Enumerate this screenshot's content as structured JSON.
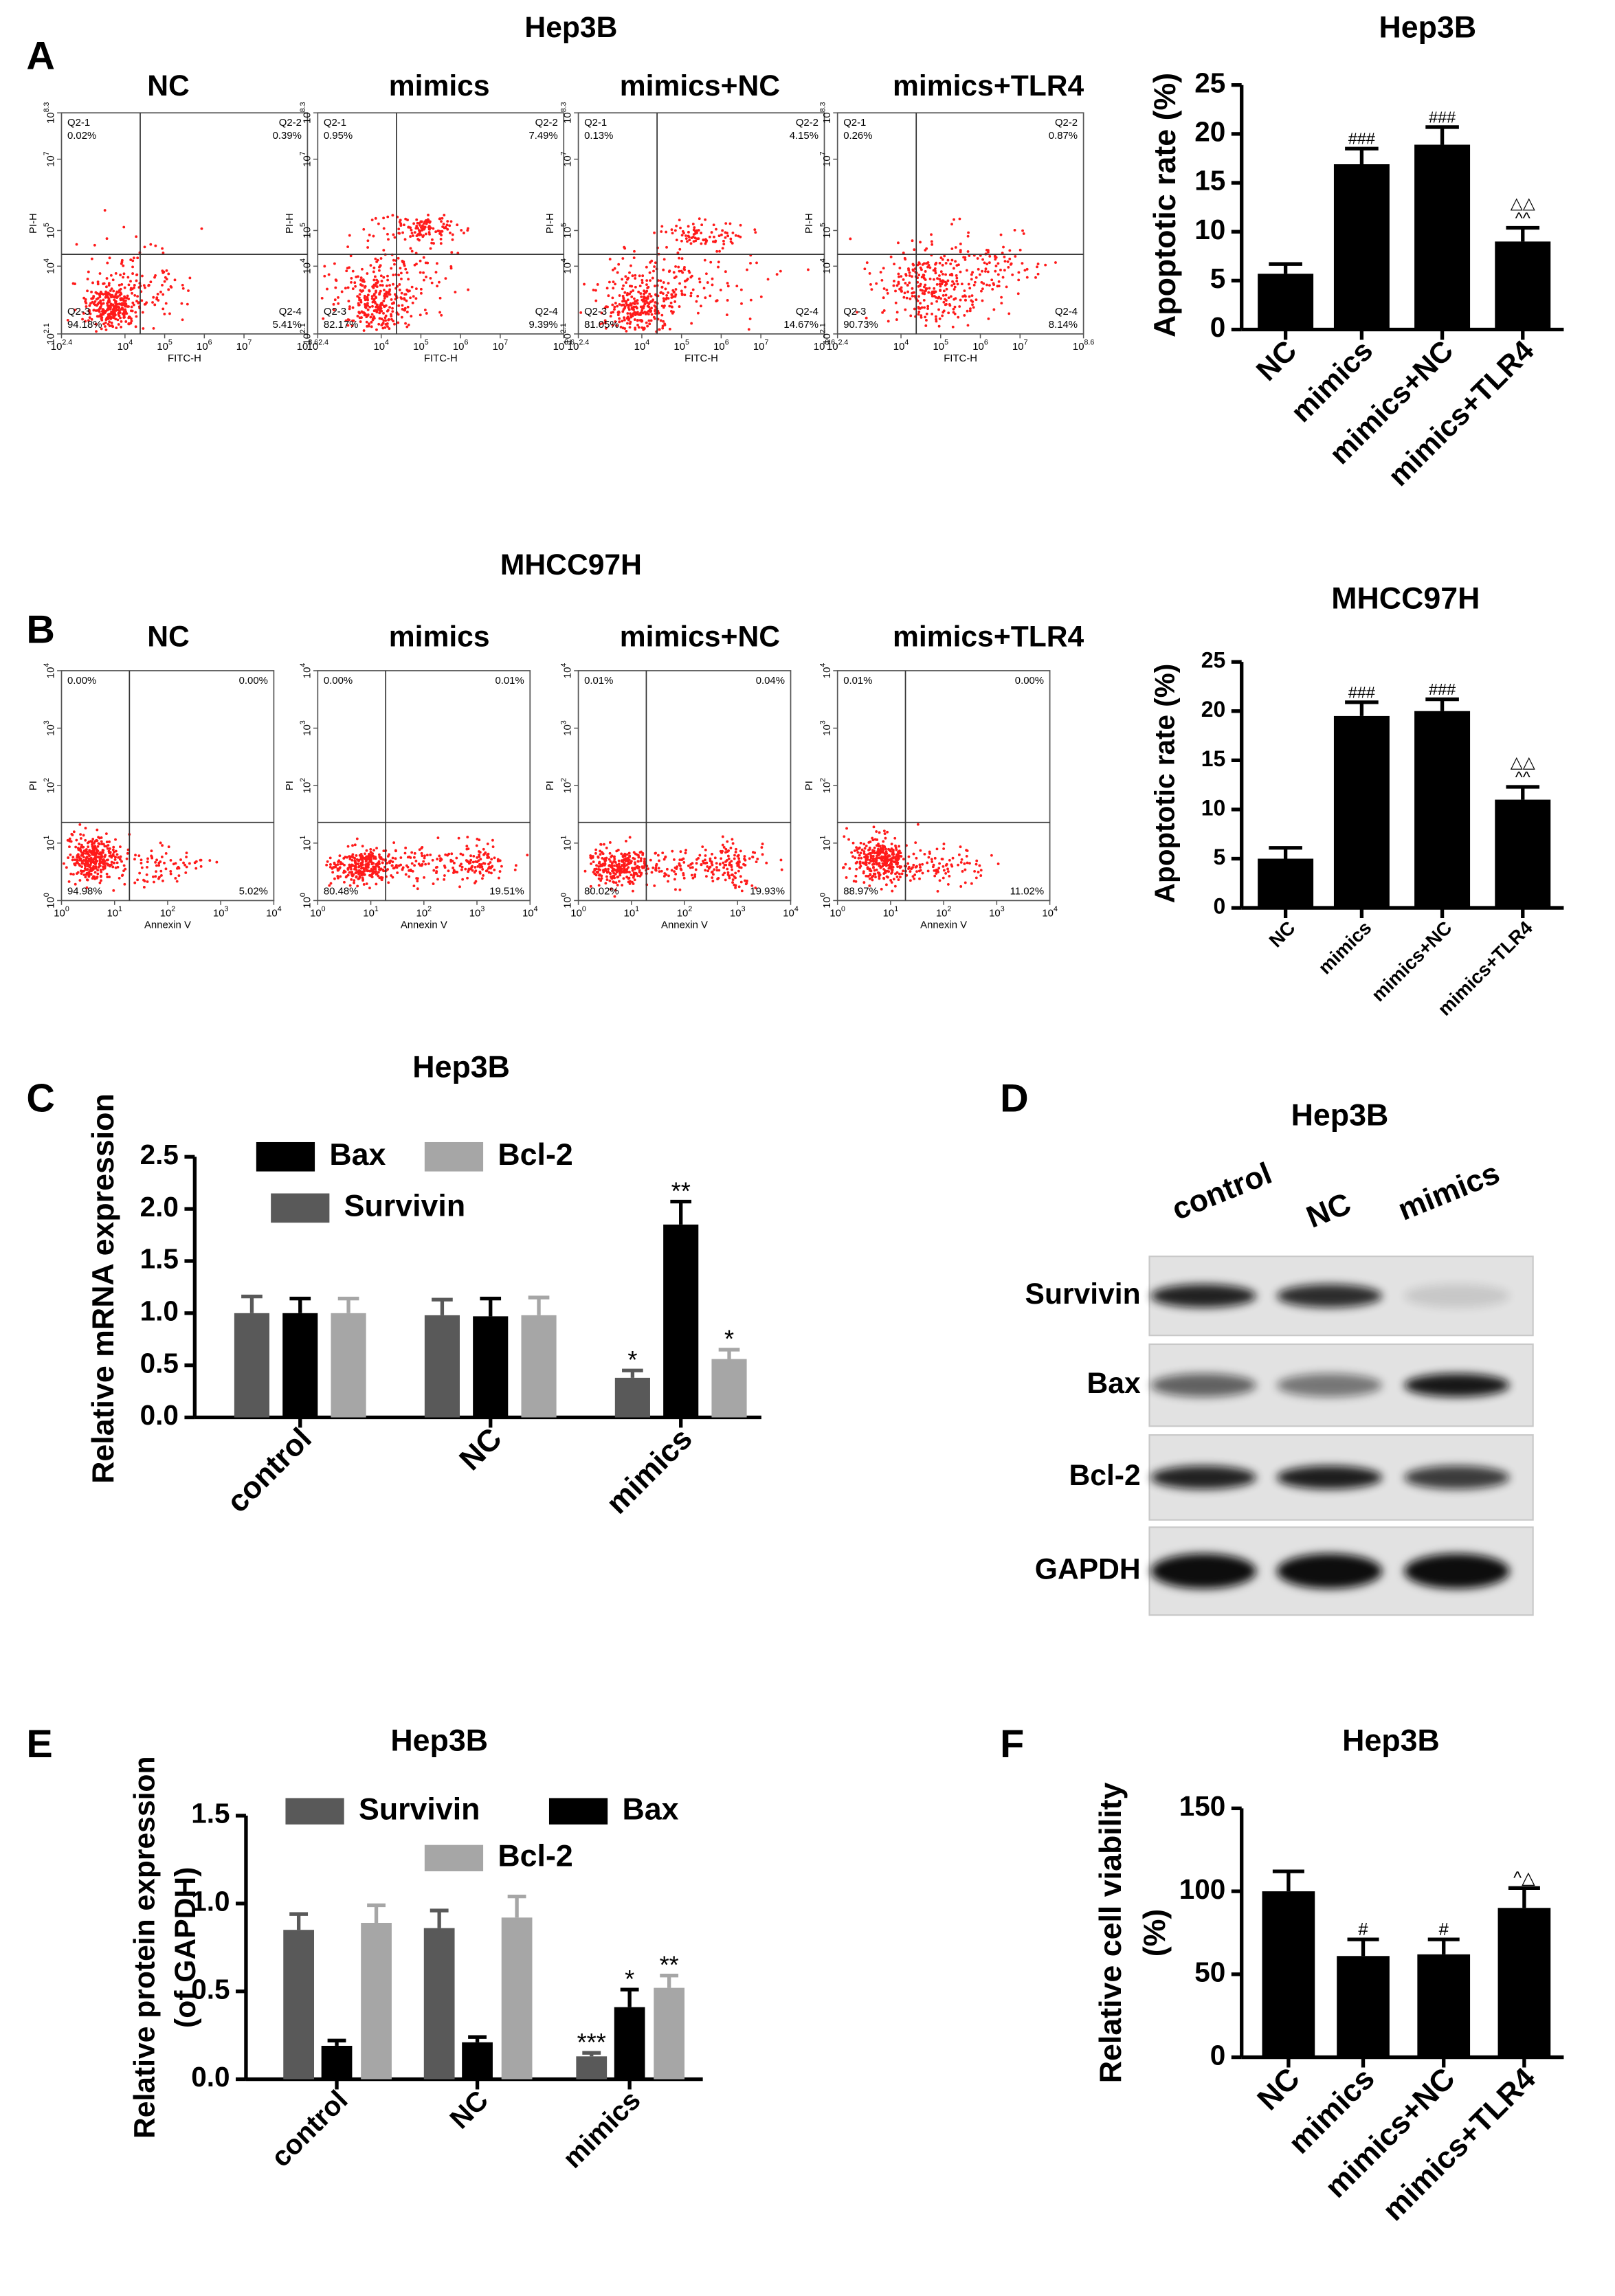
{
  "panel_labels": [
    "A",
    "B",
    "C",
    "D",
    "E",
    "F"
  ],
  "flow_cytometry": [
    {
      "title": "Hep3B",
      "x_label": "FITC-H",
      "y_label": "PI-H",
      "tick_base": "10",
      "xlim": [
        2.4,
        8.6
      ],
      "xticks": [
        2.4,
        4,
        5,
        6,
        7,
        8.6
      ],
      "ylim": [
        2.1,
        8.3
      ],
      "yticks": [
        2.1,
        4,
        5,
        7,
        8.3
      ],
      "plots": [
        {
          "title": "NC",
          "quadrants": [
            {
              "name": "Q2-1",
              "percent": "0.02%"
            },
            {
              "name": "Q2-2",
              "percent": "0.39%"
            },
            {
              "name": "Q2-3",
              "percent": "94.18%"
            },
            {
              "name": "Q2-4",
              "percent": "5.41%"
            }
          ]
        },
        {
          "title": "mimics",
          "quadrants": [
            {
              "name": "Q2-1",
              "percent": "0.95%"
            },
            {
              "name": "Q2-2",
              "percent": "7.49%"
            },
            {
              "name": "Q2-3",
              "percent": "82.17%"
            },
            {
              "name": "Q2-4",
              "percent": "9.39%"
            }
          ]
        },
        {
          "title": "mimics+NC",
          "quadrants": [
            {
              "name": "Q2-1",
              "percent": "0.13%"
            },
            {
              "name": "Q2-2",
              "percent": "4.15%"
            },
            {
              "name": "Q2-3",
              "percent": "81.05%"
            },
            {
              "name": "Q2-4",
              "percent": "14.67%"
            }
          ]
        },
        {
          "title": "mimics+TLR4",
          "quadrants": [
            {
              "name": "Q2-1",
              "percent": "0.26%"
            },
            {
              "name": "Q2-2",
              "percent": "0.87%"
            },
            {
              "name": "Q2-3",
              "percent": "90.73%"
            },
            {
              "name": "Q2-4",
              "percent": "8.14%"
            }
          ]
        }
      ]
    },
    {
      "title": "MHCC97H",
      "x_label": "Annexin V",
      "y_label": "PI",
      "tick_base": "10",
      "xlim": [
        0,
        4
      ],
      "xticks": [
        0,
        1,
        2,
        3,
        4
      ],
      "ylim": [
        0,
        4
      ],
      "yticks": [
        0,
        1,
        2,
        3,
        4
      ],
      "plots": [
        {
          "title": "NC",
          "quadrants": [
            {
              "percent": "0.00%"
            },
            {
              "percent": "0.00%"
            },
            {
              "percent": "94.98%"
            },
            {
              "percent": "5.02%"
            }
          ]
        },
        {
          "title": "mimics",
          "quadrants": [
            {
              "percent": "0.00%"
            },
            {
              "percent": "0.01%"
            },
            {
              "percent": "80.48%"
            },
            {
              "percent": "19.51%"
            }
          ]
        },
        {
          "title": "mimics+NC",
          "quadrants": [
            {
              "percent": "0.01%"
            },
            {
              "percent": "0.04%"
            },
            {
              "percent": "80.02%"
            },
            {
              "percent": "19.93%"
            }
          ]
        },
        {
          "title": "mimics+TLR4",
          "quadrants": [
            {
              "percent": "0.01%"
            },
            {
              "percent": "0.00%"
            },
            {
              "percent": "88.97%"
            },
            {
              "percent": "11.02%"
            }
          ]
        }
      ]
    }
  ],
  "western_blot": {
    "title": "Hep3B",
    "lanes": [
      "control",
      "NC",
      "mimics"
    ],
    "proteins": [
      "Survivin",
      "Bax",
      "Bcl-2",
      "GAPDH"
    ]
  },
  "chart_data": [
    {
      "type": "bar",
      "title": "Hep3B",
      "y_label": [
        "Apoptotic rate (%)"
      ],
      "categories": [
        "NC",
        "mimics",
        "mimics+NC",
        "mimics+TLR4"
      ],
      "series": [
        {
          "color": "#000000",
          "values": [
            5.7,
            16.9,
            18.9,
            9.0
          ],
          "errors": [
            1.0,
            1.6,
            1.8,
            1.4
          ],
          "annotations": [
            [],
            [
              "###"
            ],
            [
              "###"
            ],
            [
              "△△",
              "^^"
            ]
          ]
        }
      ],
      "ylim": [
        0,
        25
      ],
      "yticks": [
        0,
        5,
        10,
        15,
        20,
        25
      ]
    },
    {
      "type": "bar",
      "title": "MHCC97H",
      "y_label": [
        "Apoptotic rate (%)"
      ],
      "categories": [
        "NC",
        "mimics",
        "mimics+NC",
        "mimics+TLR4"
      ],
      "series": [
        {
          "color": "#000000",
          "values": [
            5.0,
            19.5,
            20.0,
            11.0
          ],
          "errors": [
            1.1,
            1.4,
            1.2,
            1.3
          ],
          "annotations": [
            [],
            [
              "###"
            ],
            [
              "###"
            ],
            [
              "△△",
              "^^"
            ]
          ]
        }
      ],
      "ylim": [
        0,
        25
      ],
      "yticks": [
        0,
        5,
        10,
        15,
        20,
        25
      ]
    },
    {
      "type": "bar",
      "title": "Hep3B",
      "y_label": [
        "Relative mRNA expression"
      ],
      "categories": [
        "control",
        "NC",
        "mimics"
      ],
      "series": [
        {
          "name": "Survivin",
          "color": "#595959",
          "values": [
            1.0,
            0.98,
            0.38
          ],
          "errors": [
            0.16,
            0.15,
            0.07
          ],
          "annotations": [
            [],
            [],
            [
              "*"
            ]
          ]
        },
        {
          "name": "Bax",
          "color": "#000000",
          "values": [
            1.0,
            0.97,
            1.85
          ],
          "errors": [
            0.14,
            0.17,
            0.22
          ],
          "annotations": [
            [],
            [],
            [
              "**"
            ]
          ]
        },
        {
          "name": "Bcl-2",
          "color": "#a6a6a6",
          "values": [
            1.0,
            0.98,
            0.56
          ],
          "errors": [
            0.14,
            0.17,
            0.09
          ],
          "annotations": [
            [],
            [],
            [
              "*"
            ]
          ]
        }
      ],
      "ylim": [
        0,
        2.5
      ],
      "yticks": [
        {
          "value": 0,
          "label": "0.0"
        },
        0.5,
        {
          "value": 1,
          "label": "1.0"
        },
        1.5,
        {
          "value": 2,
          "label": "2.0"
        },
        2.5
      ]
    },
    {
      "type": "bar",
      "title": "Hep3B",
      "y_label": [
        "Relative protein expression",
        "(of GAPDH)"
      ],
      "categories": [
        "control",
        "NC",
        "mimics"
      ],
      "series": [
        {
          "name": "Survivin",
          "color": "#595959",
          "values": [
            0.85,
            0.86,
            0.13
          ],
          "errors": [
            0.09,
            0.1,
            0.02
          ],
          "annotations": [
            [],
            [],
            [
              "***"
            ]
          ]
        },
        {
          "name": "Bax",
          "color": "#000000",
          "values": [
            0.19,
            0.21,
            0.41
          ],
          "errors": [
            0.03,
            0.03,
            0.1
          ],
          "annotations": [
            [],
            [],
            [
              "*"
            ]
          ]
        },
        {
          "name": "Bcl-2",
          "color": "#a6a6a6",
          "values": [
            0.89,
            0.92,
            0.52
          ],
          "errors": [
            0.1,
            0.12,
            0.07
          ],
          "annotations": [
            [],
            [],
            [
              "**"
            ]
          ]
        }
      ],
      "ylim": [
        0,
        1.5
      ],
      "yticks": [
        {
          "value": 0,
          "label": "0.0"
        },
        0.5,
        {
          "value": 1,
          "label": "1.0"
        },
        1.5
      ]
    },
    {
      "type": "bar",
      "title": "Hep3B",
      "y_label": [
        "Relative cell viability",
        "(%)"
      ],
      "categories": [
        "NC",
        "mimics",
        "mimics+NC",
        "mimics+TLR4"
      ],
      "series": [
        {
          "color": "#000000",
          "values": [
            100,
            61,
            62,
            90
          ],
          "errors": [
            12,
            10,
            9,
            12
          ],
          "annotations": [
            [],
            [
              "#"
            ],
            [
              "#"
            ],
            [
              "^△"
            ]
          ]
        }
      ],
      "ylim": [
        0,
        150
      ],
      "yticks": [
        0,
        50,
        100,
        150
      ]
    }
  ]
}
